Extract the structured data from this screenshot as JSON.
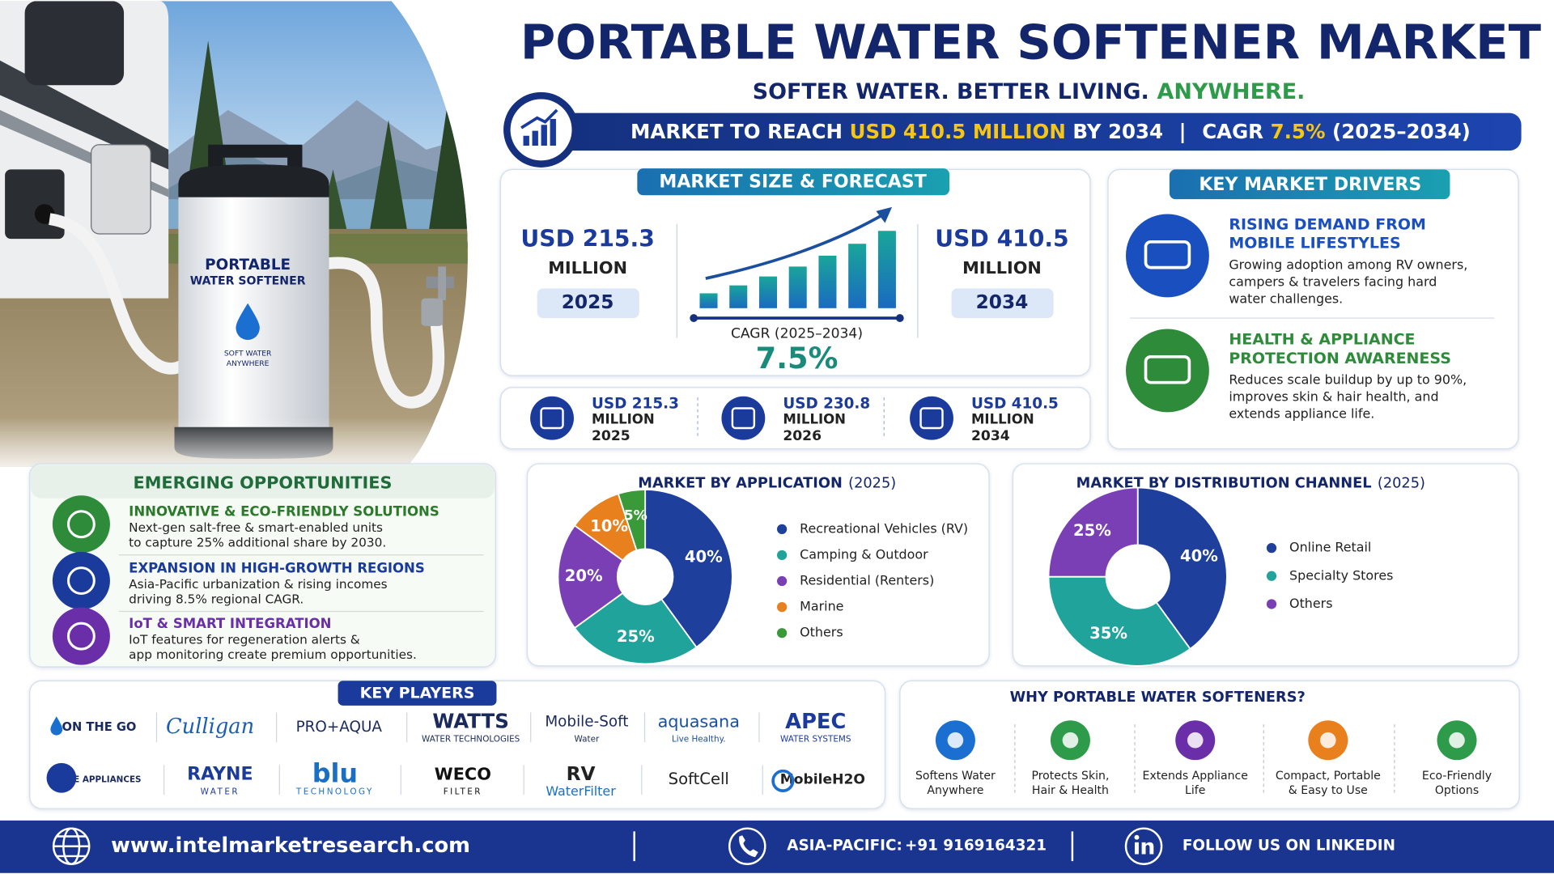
{
  "header": {
    "title": "PORTABLE WATER SOFTENER MARKET",
    "tagline": "SOFTER WATER. BETTER LIVING.",
    "tagline_accent": "ANYWHERE."
  },
  "banner": {
    "lead": "MARKET TO REACH",
    "amount": "USD 410.5 MILLION",
    "year": "BY 2034",
    "separator": "|",
    "cagr_label": "CAGR",
    "cagr": "7.5%",
    "period": "(2025–2034)"
  },
  "product": {
    "line1": "PORTABLE",
    "line2": "WATER SOFTENER",
    "tag1": "SOFT WATER",
    "tag2": "ANYWHERE"
  },
  "forecast": {
    "title": "MARKET SIZE & FORECAST",
    "start": {
      "value": "USD 215.3",
      "unit": "MILLION",
      "year": "2025"
    },
    "end": {
      "value": "USD 410.5",
      "unit": "MILLION",
      "year": "2034"
    },
    "cagr_label": "CAGR (2025–2034)",
    "cagr": "7.5%"
  },
  "stats": [
    {
      "value": "USD 215.3",
      "unit": "MILLION",
      "year": "2025"
    },
    {
      "value": "USD 230.8",
      "unit": "MILLION",
      "year": "2026"
    },
    {
      "value": "USD 410.5",
      "unit": "MILLION",
      "year": "2034"
    }
  ],
  "drivers": {
    "title": "KEY MARKET DRIVERS",
    "items": [
      {
        "heading": [
          "RISING DEMAND FROM",
          "MOBILE LIFESTYLES"
        ],
        "text": [
          "Growing adoption among RV owners,",
          "campers & travelers facing hard",
          "water challenges."
        ]
      },
      {
        "heading": [
          "HEALTH & APPLIANCE",
          "PROTECTION AWARENESS"
        ],
        "text": [
          "Reduces scale buildup by up to 90%,",
          "improves skin & hair health, and",
          "extends appliance life."
        ]
      }
    ]
  },
  "opportunities": {
    "title": "EMERGING OPPORTUNITIES",
    "items": [
      {
        "heading": "INNOVATIVE & ECO-FRIENDLY SOLUTIONS",
        "text": [
          "Next-gen salt-free & smart-enabled units",
          "to capture 25% additional share by 2030."
        ]
      },
      {
        "heading": "EXPANSION IN HIGH-GROWTH REGIONS",
        "text": [
          "Asia-Pacific urbanization & rising incomes",
          "driving 8.5% regional CAGR."
        ]
      },
      {
        "heading": "IoT & SMART INTEGRATION",
        "text": [
          "IoT features for regeneration alerts &",
          "app monitoring create premium opportunities."
        ]
      }
    ]
  },
  "chart_data": [
    {
      "type": "pie",
      "title": "MARKET BY APPLICATION",
      "subtitle": "(2025)",
      "categories": [
        "Recreational Vehicles (RV)",
        "Camping & Outdoor",
        "Residential (Renters)",
        "Marine",
        "Others"
      ],
      "values": [
        40,
        25,
        20,
        10,
        5
      ],
      "value_labels": [
        "40%",
        "25%",
        "20%",
        "10%",
        "5%"
      ],
      "colors": [
        "#1e3f9c",
        "#1fa39a",
        "#7b3fb5",
        "#e8801e",
        "#3a9a3a"
      ]
    },
    {
      "type": "pie",
      "title": "MARKET BY DISTRIBUTION CHANNEL",
      "subtitle": "(2025)",
      "categories": [
        "Online Retail",
        "Specialty Stores",
        "Others"
      ],
      "values": [
        40,
        35,
        25
      ],
      "value_labels": [
        "40%",
        "35%",
        "25%"
      ],
      "colors": [
        "#1e3f9c",
        "#1fa39a",
        "#7b3fb5"
      ]
    }
  ],
  "players": {
    "title": "KEY PLAYERS",
    "rows": [
      [
        {
          "name": "ON THE GO"
        },
        {
          "name": "Culligan"
        },
        {
          "name": "PRO+AQUA"
        },
        {
          "name": "WATTS",
          "sub": "WATER TECHNOLOGIES"
        },
        {
          "name": "Mobile-Soft",
          "sub": "Water"
        },
        {
          "name": "aquasana",
          "sub": "Live Healthy."
        },
        {
          "name": "APEC",
          "sub": "WATER SYSTEMS"
        }
      ],
      [
        {
          "name": "GE APPLIANCES"
        },
        {
          "name": "RAYNE",
          "sub": "WATER"
        },
        {
          "name": "blu",
          "sub": "TECHNOLOGY"
        },
        {
          "name": "WECO",
          "sub": "FILTER"
        },
        {
          "name": "RV",
          "sub": "WaterFilter"
        },
        {
          "name": "SoftCell"
        },
        {
          "name": "MobileH2O"
        }
      ]
    ]
  },
  "why": {
    "title": "WHY PORTABLE WATER SOFTENERS?",
    "items": [
      [
        "Softens Water",
        "Anywhere"
      ],
      [
        "Protects Skin,",
        "Hair & Health"
      ],
      [
        "Extends Appliance",
        "Life"
      ],
      [
        "Compact, Portable",
        "& Easy to Use"
      ],
      [
        "Eco-Friendly",
        "Options"
      ]
    ]
  },
  "footer": {
    "website": "www.intelmarketresearch.com",
    "region": "ASIA-PACIFIC:",
    "phone": "+91 9169164321",
    "social": "FOLLOW US ON LINKEDIN"
  }
}
